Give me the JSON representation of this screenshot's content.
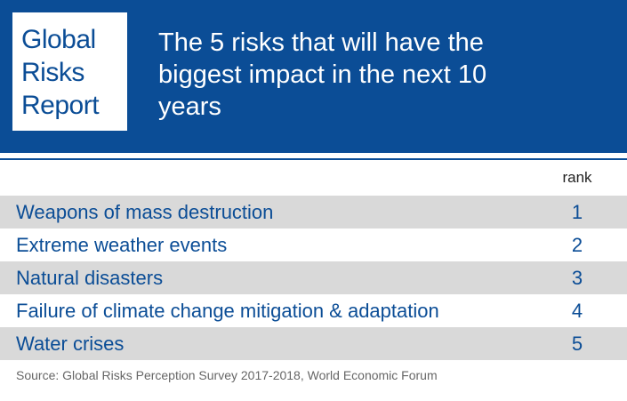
{
  "logo": {
    "lines": [
      "Global",
      "Risks",
      "Report"
    ]
  },
  "title": {
    "lines": [
      "The 5 risks that will have the",
      "biggest impact in the next 10",
      "years"
    ]
  },
  "table": {
    "rank_header": "rank",
    "rows": [
      {
        "label": "Weapons of mass destruction",
        "rank": "1"
      },
      {
        "label": "Extreme weather events",
        "rank": "2"
      },
      {
        "label": "Natural disasters",
        "rank": "3"
      },
      {
        "label": "Failure of climate change mitigation & adaptation",
        "rank": "4"
      },
      {
        "label": "Water crises",
        "rank": "5"
      }
    ]
  },
  "source": "Source: Global Risks Perception Survey 2017-2018, World Economic Forum",
  "colors": {
    "brand_blue": "#0b4d96",
    "row_shade": "#d9d9d9",
    "source_text": "#666666"
  }
}
